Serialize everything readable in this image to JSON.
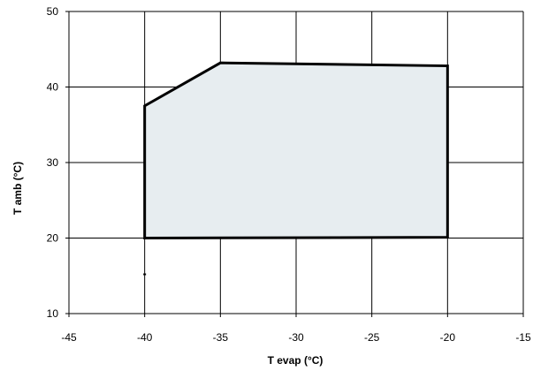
{
  "chart_data": {
    "type": "area",
    "xlabel": "T evap (°C)",
    "ylabel": "T amb (°C)",
    "xlim": [
      -45,
      -15
    ],
    "ylim": [
      10,
      50
    ],
    "x_ticks": [
      -45,
      -40,
      -35,
      -30,
      -25,
      -20,
      -15
    ],
    "y_ticks": [
      10,
      20,
      30,
      40,
      50
    ],
    "grid": true,
    "series": [
      {
        "x": [
          -40,
          -40,
          -35,
          -20,
          -20,
          -40
        ],
        "y": [
          20,
          37.5,
          43.2,
          42.8,
          20.1,
          20
        ],
        "fill": "#e7edf0",
        "stroke": "#000000"
      }
    ],
    "annotations": [
      {
        "x": -40,
        "y": 15.2
      }
    ]
  }
}
